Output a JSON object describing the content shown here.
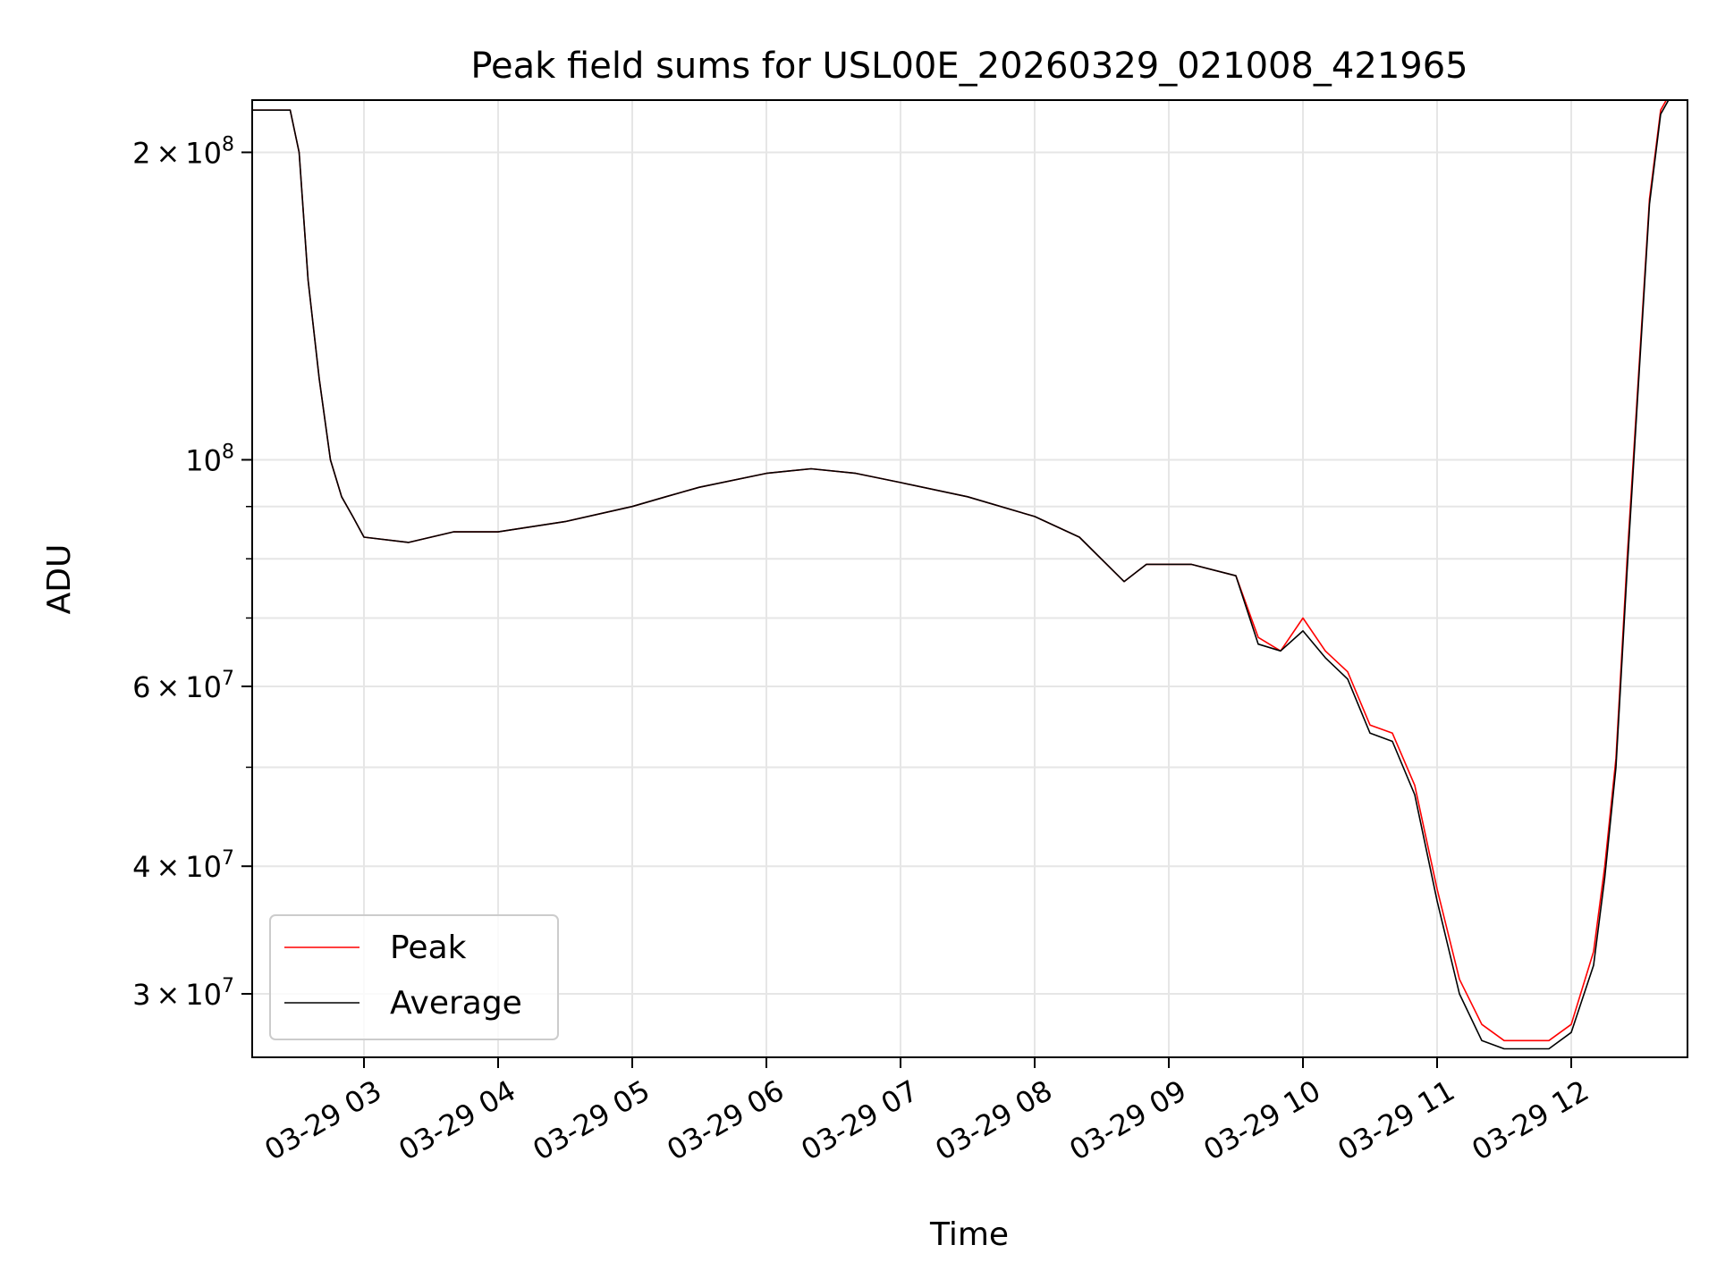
{
  "chart_data": {
    "type": "line",
    "title": "Peak field sums for USL00E_20260329_021008_421965",
    "xlabel": "Time",
    "ylabel": "ADU",
    "yscale": "log",
    "xlim": [
      "03-29 02:10",
      "03-29 12:52"
    ],
    "ylim": [
      26000000,
      225000000
    ],
    "grid": true,
    "legend": {
      "location": "lower-left",
      "entries": [
        "Peak",
        "Average"
      ]
    },
    "x_ticks": [
      "03-29 03",
      "03-29 04",
      "03-29 05",
      "03-29 06",
      "03-29 07",
      "03-29 08",
      "03-29 09",
      "03-29 10",
      "03-29 11",
      "03-29 12"
    ],
    "y_ticks": [
      {
        "value": 200000000,
        "mantissa": "2",
        "exp": "8"
      },
      {
        "value": 100000000,
        "mantissa": "",
        "exp": "8"
      },
      {
        "value": 60000000,
        "mantissa": "6",
        "exp": "7"
      },
      {
        "value": 40000000,
        "mantissa": "4",
        "exp": "7"
      },
      {
        "value": 30000000,
        "mantissa": "3",
        "exp": "7"
      }
    ],
    "y_minor_ticks": [
      90000000,
      80000000,
      70000000,
      50000000
    ],
    "x": [
      "03-29 02:10",
      "03-29 02:20",
      "03-29 02:27",
      "03-29 02:31",
      "03-29 02:35",
      "03-29 02:40",
      "03-29 02:45",
      "03-29 02:50",
      "03-29 02:55",
      "03-29 03:00",
      "03-29 03:20",
      "03-29 03:40",
      "03-29 04:00",
      "03-29 04:30",
      "03-29 05:00",
      "03-29 05:15",
      "03-29 05:30",
      "03-29 06:00",
      "03-29 06:20",
      "03-29 06:40",
      "03-29 07:00",
      "03-29 07:30",
      "03-29 08:00",
      "03-29 08:20",
      "03-29 08:40",
      "03-29 08:50",
      "03-29 09:10",
      "03-29 09:30",
      "03-29 09:40",
      "03-29 09:50",
      "03-29 10:00",
      "03-29 10:10",
      "03-29 10:20",
      "03-29 10:30",
      "03-29 10:40",
      "03-29 10:50",
      "03-29 11:00",
      "03-29 11:10",
      "03-29 11:20",
      "03-29 11:30",
      "03-29 11:40",
      "03-29 11:50",
      "03-29 12:00",
      "03-29 12:10",
      "03-29 12:15",
      "03-29 12:20",
      "03-29 12:25",
      "03-29 12:30",
      "03-29 12:35",
      "03-29 12:40",
      "03-29 12:45"
    ],
    "series": [
      {
        "name": "Peak",
        "color": "#ff0000",
        "values": [
          220000000,
          220000000,
          220000000,
          200000000,
          150000000,
          120000000,
          100000000,
          92000000,
          88000000,
          84000000,
          83000000,
          85000000,
          85000000,
          87000000,
          90000000,
          92000000,
          94000000,
          97000000,
          98000000,
          97000000,
          95000000,
          92000000,
          88000000,
          84000000,
          76000000,
          79000000,
          79000000,
          77000000,
          67000000,
          65000000,
          70000000,
          65000000,
          62000000,
          55000000,
          54000000,
          48000000,
          38000000,
          31000000,
          28000000,
          27000000,
          27000000,
          27000000,
          28000000,
          33000000,
          40000000,
          51000000,
          80000000,
          120000000,
          180000000,
          220000000,
          230000000
        ]
      },
      {
        "name": "Average",
        "color": "#000000",
        "values": [
          220000000,
          220000000,
          220000000,
          200000000,
          150000000,
          120000000,
          100000000,
          92000000,
          88000000,
          84000000,
          83000000,
          85000000,
          85000000,
          87000000,
          90000000,
          92000000,
          94000000,
          97000000,
          98000000,
          97000000,
          95000000,
          92000000,
          88000000,
          84000000,
          76000000,
          79000000,
          79000000,
          77000000,
          66000000,
          65000000,
          68000000,
          64000000,
          61000000,
          54000000,
          53000000,
          47000000,
          37000000,
          30000000,
          27000000,
          26500000,
          26500000,
          26500000,
          27500000,
          32000000,
          39000000,
          50000000,
          78000000,
          118000000,
          178000000,
          218000000,
          228000000
        ]
      }
    ]
  }
}
